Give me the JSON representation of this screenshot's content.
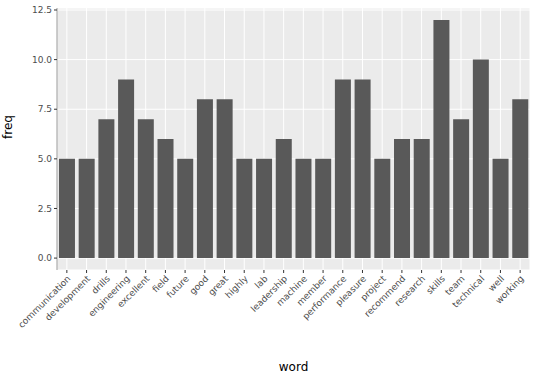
{
  "chart_data": {
    "type": "bar",
    "x_label": "word",
    "y_label": "freq",
    "categories": [
      "communication",
      "development",
      "drills",
      "engineering",
      "excellent",
      "field",
      "future",
      "good",
      "great",
      "highly",
      "lab",
      "leadership",
      "machine",
      "member",
      "performance",
      "pleasure",
      "project",
      "recommend",
      "research",
      "skills",
      "team",
      "technical",
      "well",
      "working"
    ],
    "values": [
      5,
      5,
      7,
      9,
      7,
      6,
      5,
      8,
      8,
      5,
      5,
      6,
      5,
      5,
      9,
      9,
      5,
      6,
      6,
      12,
      7,
      10,
      5,
      8
    ],
    "color": "#595959",
    "ylim": [
      -0.6,
      12.6
    ],
    "yticks": [
      {
        "value": 0,
        "label": "0.0"
      },
      2.5,
      {
        "value": 5,
        "label": "5.0"
      },
      7.5,
      {
        "value": 10,
        "label": "10.0"
      },
      12.5
    ],
    "grid": true
  }
}
